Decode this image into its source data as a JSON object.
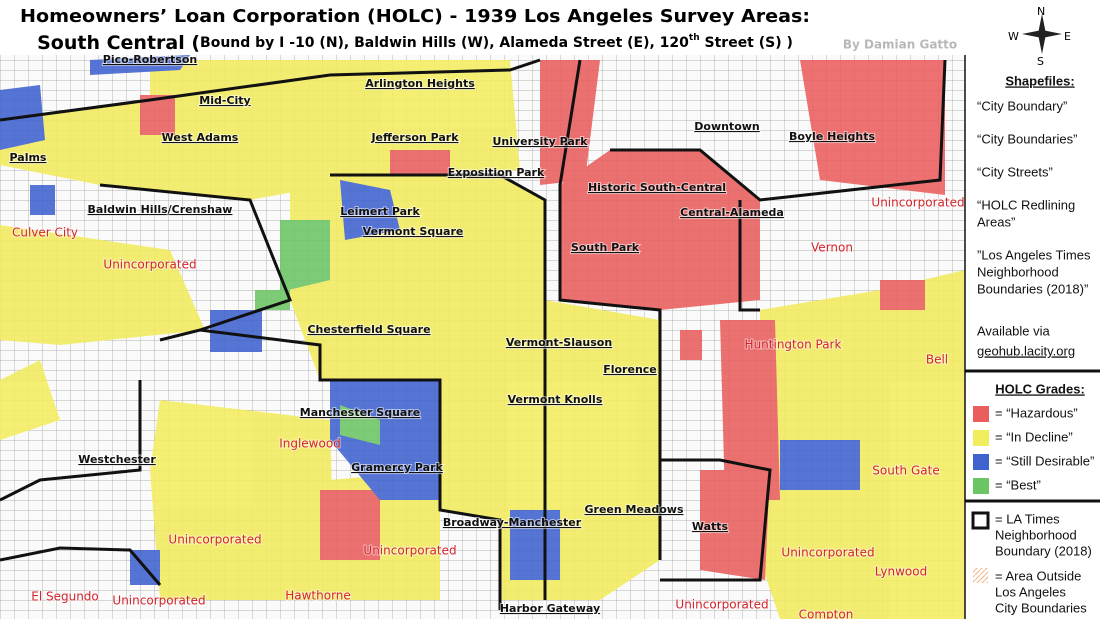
{
  "header": {
    "title": "Homeowners’ Loan Corporation (HOLC) - 1939 Los Angeles Survey Areas:",
    "subtitle": {
      "name": "South Central (",
      "detail": "Bound by I -10 (N), Baldwin Hills (W), Alameda Street (E), 120",
      "sup": "th",
      "end": " Street (S) )"
    },
    "credit": "By Damian Gatto"
  },
  "compass": {
    "n": "N",
    "e": "E",
    "s": "S",
    "w": "W"
  },
  "neighborhoods": [
    "Pico-Robertson",
    "Arlington Heights",
    "Mid-City",
    "West Adams",
    "Jefferson Park",
    "University Park",
    "Downtown",
    "Boyle Heights",
    "Palms",
    "Historic South-Central",
    "Exposition Park",
    "Baldwin Hills/Crenshaw",
    "Leimert Park",
    "Central-Alameda",
    "Vermont Square",
    "South Park",
    "Chesterfield Square",
    "Vermont-Slauson",
    "Florence",
    "Vermont Knolls",
    "Manchester Square",
    "Gramercy Park",
    "Westchester",
    "Green Meadows",
    "Broadway-Manchester",
    "Watts",
    "Harbor Gateway"
  ],
  "places": [
    "Culver City",
    "Unincorporated",
    "Unincorporated",
    "Vernon",
    "Huntington Park",
    "Bell",
    "Inglewood",
    "South Gate",
    "Unincorporated",
    "Unincorporated",
    "Unincorporated",
    "Lynwood",
    "El Segundo",
    "Unincorporated",
    "Hawthorne",
    "Unincorporated",
    "Compton"
  ],
  "sidebar": {
    "shapefiles_title": "Shapefiles:",
    "shapefiles": [
      [
        "“City Boundary”"
      ],
      [
        "“City Boundaries”"
      ],
      [
        "“City Streets”"
      ],
      [
        "“HOLC Redlining",
        "Areas”"
      ],
      [
        "”Los Angeles Times",
        "Neighborhood",
        "Boundaries (2018)”"
      ]
    ],
    "available": "Available via",
    "link": "geohub.lacity.org"
  },
  "legend": {
    "title": "HOLC Grades:",
    "items": [
      {
        "label": "= “Hazardous”",
        "color": "#ea5d5d"
      },
      {
        "label": "= “In Decline”",
        "color": "#f2ec5f"
      },
      {
        "label": "= “Still Desirable”",
        "color": "#3f62cf"
      },
      {
        "label": "= “Best”",
        "color": "#6cc564"
      }
    ],
    "boundary": [
      "= LA Times",
      "Neighborhood",
      "Boundary (2018)"
    ],
    "outside": [
      "= Area Outside",
      "Los Angeles",
      "City Boundaries"
    ]
  }
}
